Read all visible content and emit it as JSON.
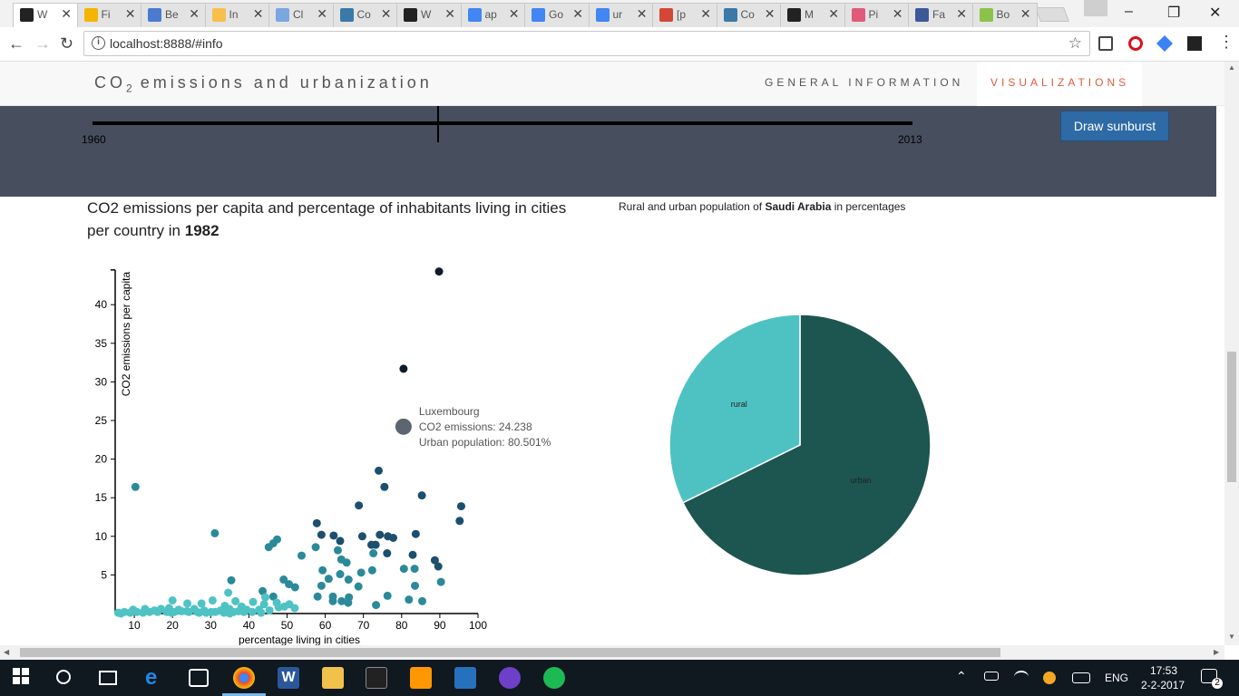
{
  "browser": {
    "tabs": [
      {
        "title": "W",
        "color": "#222"
      },
      {
        "title": "Fi",
        "color": "#f4b400"
      },
      {
        "title": "Be",
        "color": "#4a7bd0"
      },
      {
        "title": "In",
        "color": "#f6c04a"
      },
      {
        "title": "Cl",
        "color": "#7aa7e0"
      },
      {
        "title": "Co",
        "color": "#3a79a8"
      },
      {
        "title": "W",
        "color": "#222"
      },
      {
        "title": "ap",
        "color": "#4285f4"
      },
      {
        "title": "Go",
        "color": "#4285f4"
      },
      {
        "title": "ur",
        "color": "#4285f4"
      },
      {
        "title": "[p",
        "color": "#d44638"
      },
      {
        "title": "Co",
        "color": "#3a79a8"
      },
      {
        "title": "M",
        "color": "#222"
      },
      {
        "title": "Pi",
        "color": "#e05a7a"
      },
      {
        "title": "Fa",
        "color": "#3b5998"
      },
      {
        "title": "Bo",
        "color": "#8bc34a"
      }
    ],
    "url": "localhost:8888/#info"
  },
  "page": {
    "brand": "CO",
    "brand_sub": "2",
    "brand_rest": " emissions and urbanization",
    "nav_general": "GENERAL INFORMATION",
    "nav_visualizations": "VISUALIZATIONS",
    "timeline_start": "1960",
    "timeline_end": "2013",
    "sunburst_button": "Draw sunburst",
    "scatter_title": "CO2 emissions per capita and percentage of inhabitants living in cities per country in ",
    "scatter_year": "1982",
    "pie_title_prefix": "Rural and urban population of ",
    "pie_country": "Saudi Arabia",
    "pie_title_suffix": " in percentages"
  },
  "tooltip": {
    "country": "Luxembourg",
    "co2": "CO2 emissions: 24.238",
    "urban": "Urban population: 80.501%"
  },
  "taskbar": {
    "lang": "ENG",
    "time": "17:53",
    "date": "2-2-2017",
    "notif": "2"
  },
  "chart_data": [
    {
      "type": "scatter",
      "title": "",
      "xlabel": "percentage living in cities",
      "ylabel": "CO2 emissions per capita",
      "xlim": [
        5,
        100
      ],
      "ylim": [
        0,
        45
      ],
      "x_ticks": [
        10,
        20,
        30,
        40,
        50,
        60,
        70,
        80,
        90,
        100
      ],
      "y_ticks": [
        5,
        10,
        15,
        20,
        25,
        30,
        35,
        40
      ],
      "points": [
        [
          89.8,
          44.3
        ],
        [
          80.5,
          31.7
        ],
        [
          68.8,
          14.0
        ],
        [
          10.3,
          16.4
        ],
        [
          31.1,
          10.4
        ],
        [
          74.0,
          18.5
        ],
        [
          75.5,
          16.4
        ],
        [
          85.3,
          15.3
        ],
        [
          95.6,
          13.9
        ],
        [
          95.2,
          12.0
        ],
        [
          57.8,
          11.7
        ],
        [
          59.0,
          10.2
        ],
        [
          62.2,
          10.1
        ],
        [
          63.9,
          9.4
        ],
        [
          69.7,
          10.0
        ],
        [
          74.3,
          10.2
        ],
        [
          76.4,
          10.0
        ],
        [
          77.8,
          9.8
        ],
        [
          83.7,
          10.3
        ],
        [
          72.1,
          8.9
        ],
        [
          73.2,
          8.9
        ],
        [
          57.5,
          8.6
        ],
        [
          63.3,
          8.2
        ],
        [
          46.4,
          9.1
        ],
        [
          47.4,
          9.6
        ],
        [
          45.2,
          8.6
        ],
        [
          53.8,
          7.5
        ],
        [
          72.6,
          7.8
        ],
        [
          76.2,
          7.8
        ],
        [
          82.9,
          7.6
        ],
        [
          88.7,
          6.9
        ],
        [
          89.6,
          6.1
        ],
        [
          64.2,
          7.0
        ],
        [
          65.6,
          6.6
        ],
        [
          59.3,
          5.6
        ],
        [
          69.4,
          5.3
        ],
        [
          72.3,
          5.6
        ],
        [
          80.6,
          5.8
        ],
        [
          83.4,
          5.8
        ],
        [
          63.9,
          5.1
        ],
        [
          60.9,
          4.5
        ],
        [
          66.1,
          4.4
        ],
        [
          49.1,
          4.4
        ],
        [
          50.5,
          3.8
        ],
        [
          59.0,
          3.6
        ],
        [
          68.7,
          3.5
        ],
        [
          90.3,
          4.1
        ],
        [
          83.5,
          3.6
        ],
        [
          35.4,
          4.3
        ],
        [
          34.6,
          2.7
        ],
        [
          43.6,
          2.9
        ],
        [
          44.3,
          2.1
        ],
        [
          46.4,
          2.2
        ],
        [
          52.1,
          3.4
        ],
        [
          58.0,
          2.2
        ],
        [
          62.0,
          2.2
        ],
        [
          66.2,
          2.1
        ],
        [
          76.3,
          2.3
        ],
        [
          81.9,
          1.8
        ],
        [
          85.4,
          1.6
        ],
        [
          30.5,
          1.7
        ],
        [
          36.5,
          1.6
        ],
        [
          20.0,
          1.7
        ],
        [
          23.9,
          1.3
        ],
        [
          27.6,
          1.3
        ],
        [
          33.7,
          1.0
        ],
        [
          38.1,
          0.9
        ],
        [
          41.1,
          1.5
        ],
        [
          44.0,
          1.2
        ],
        [
          47.3,
          1.4
        ],
        [
          50.6,
          1.2
        ],
        [
          62.0,
          1.6
        ],
        [
          66.0,
          1.4
        ],
        [
          73.3,
          1.1
        ],
        [
          64.3,
          1.6
        ],
        [
          9.7,
          0.5
        ],
        [
          12.8,
          0.6
        ],
        [
          15.3,
          0.4
        ],
        [
          17.0,
          0.6
        ],
        [
          19.1,
          0.7
        ],
        [
          21.6,
          0.5
        ],
        [
          23.7,
          0.3
        ],
        [
          25.7,
          0.6
        ],
        [
          28.3,
          0.4
        ],
        [
          30.1,
          0.2
        ],
        [
          32.6,
          0.4
        ],
        [
          34.9,
          0.6
        ],
        [
          37.3,
          0.3
        ],
        [
          39.4,
          0.5
        ],
        [
          42.7,
          0.5
        ],
        [
          45.4,
          0.4
        ],
        [
          47.8,
          0.8
        ],
        [
          49.3,
          0.9
        ],
        [
          52.0,
          0.7
        ],
        [
          5.8,
          0.1
        ],
        [
          7.4,
          0.2
        ],
        [
          8.9,
          0.1
        ],
        [
          10.7,
          0.2
        ],
        [
          12.3,
          0.1
        ],
        [
          14.0,
          0.2
        ],
        [
          16.1,
          0.2
        ],
        [
          18.5,
          0.2
        ],
        [
          20.5,
          0.2
        ],
        [
          22.4,
          0.3
        ],
        [
          24.3,
          0.2
        ],
        [
          26.5,
          0.2
        ],
        [
          28.8,
          0.1
        ],
        [
          31.2,
          0.2
        ],
        [
          33.5,
          0.1
        ],
        [
          36.0,
          0.2
        ],
        [
          38.7,
          0.2
        ],
        [
          40.9,
          0.2
        ],
        [
          43.2,
          0.1
        ],
        [
          6.5,
          0.0
        ],
        [
          19.7,
          0.1
        ],
        [
          27.0,
          0.1
        ],
        [
          35.0,
          0.0
        ],
        [
          80.5,
          24.2
        ]
      ],
      "highlight": {
        "x": 80.5,
        "y": 24.2,
        "label": "Luxembourg"
      },
      "color_scale": [
        "#4fc3c3",
        "#2b8a9a",
        "#1c4f6e",
        "#0d1b2a"
      ]
    },
    {
      "type": "pie",
      "labels": [
        "urban",
        "rural"
      ],
      "values": [
        67.7,
        32.3
      ],
      "colors": [
        "#1d5550",
        "#4ec2c2"
      ]
    }
  ]
}
